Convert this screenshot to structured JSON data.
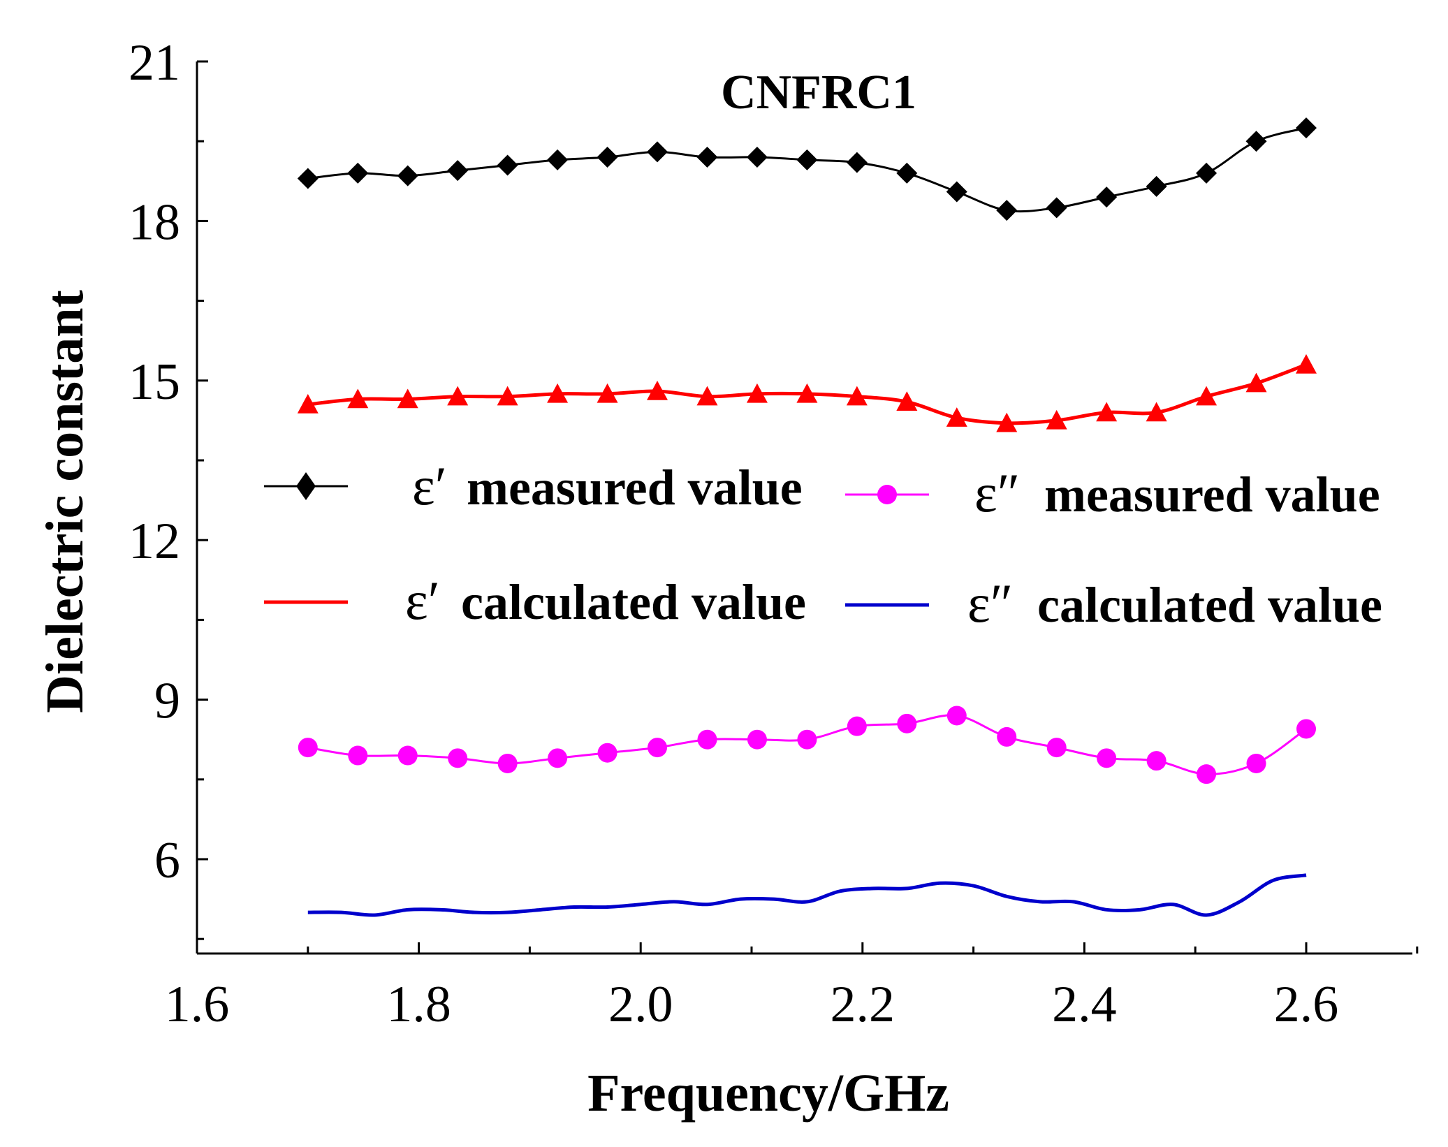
{
  "chart_data": {
    "type": "line",
    "title": "CNFRC1",
    "xlabel": "Frequency/GHz",
    "ylabel": "Dielectric constant",
    "xlim": [
      1.6,
      2.7
    ],
    "ylim": [
      4.0,
      21.0
    ],
    "xticks": [
      1.6,
      1.8,
      2.0,
      2.2,
      2.4,
      2.6
    ],
    "xtick_labels": [
      "1.6",
      "1.8",
      "2.0",
      "2.2",
      "2.4",
      "2.6"
    ],
    "yticks": [
      6,
      9,
      12,
      15,
      18,
      21
    ],
    "ytick_labels": [
      "6",
      "9",
      "12",
      "15",
      "18",
      "21"
    ],
    "legend_position": "center",
    "series": [
      {
        "name": "ε′ measured value",
        "symbol": "ε′",
        "label": "measured value",
        "color": "#000000",
        "marker": "diamond",
        "x": [
          1.7,
          1.745,
          1.79,
          1.835,
          1.88,
          1.925,
          1.97,
          2.015,
          2.06,
          2.105,
          2.15,
          2.195,
          2.24,
          2.285,
          2.33,
          2.375,
          2.42,
          2.465,
          2.51,
          2.555,
          2.6
        ],
        "y": [
          18.8,
          18.9,
          18.85,
          18.95,
          19.05,
          19.15,
          19.2,
          19.3,
          19.2,
          19.2,
          19.15,
          19.1,
          18.9,
          18.55,
          18.2,
          18.25,
          18.45,
          18.65,
          18.9,
          19.5,
          19.75
        ]
      },
      {
        "name": "ε′ calculated value",
        "symbol": "ε′",
        "label": "calculated value",
        "color": "#ff0000",
        "marker": "triangle",
        "x": [
          1.7,
          1.745,
          1.79,
          1.835,
          1.88,
          1.925,
          1.97,
          2.015,
          2.06,
          2.105,
          2.15,
          2.195,
          2.24,
          2.285,
          2.33,
          2.375,
          2.42,
          2.465,
          2.51,
          2.555,
          2.6
        ],
        "y": [
          14.55,
          14.65,
          14.65,
          14.7,
          14.7,
          14.75,
          14.75,
          14.8,
          14.7,
          14.75,
          14.75,
          14.7,
          14.6,
          14.3,
          14.2,
          14.25,
          14.4,
          14.4,
          14.7,
          14.95,
          15.3
        ]
      },
      {
        "name": "ε″ measured value",
        "symbol": "ε″",
        "label": "measured value",
        "color": "#ff00ff",
        "marker": "circle",
        "x": [
          1.7,
          1.745,
          1.79,
          1.835,
          1.88,
          1.925,
          1.97,
          2.015,
          2.06,
          2.105,
          2.15,
          2.195,
          2.24,
          2.285,
          2.33,
          2.375,
          2.42,
          2.465,
          2.51,
          2.555,
          2.6
        ],
        "y": [
          8.1,
          7.95,
          7.95,
          7.9,
          7.8,
          7.9,
          8.0,
          8.1,
          8.25,
          8.25,
          8.25,
          8.5,
          8.55,
          8.7,
          8.3,
          8.1,
          7.9,
          7.85,
          7.6,
          7.8,
          8.45
        ]
      },
      {
        "name": "ε″ calculated value",
        "symbol": "ε″",
        "label": "calculated value",
        "color": "#0000cc",
        "marker": "none",
        "x": [
          1.7,
          1.73,
          1.76,
          1.79,
          1.82,
          1.85,
          1.88,
          1.91,
          1.94,
          1.97,
          2.0,
          2.03,
          2.06,
          2.09,
          2.12,
          2.15,
          2.18,
          2.21,
          2.24,
          2.27,
          2.3,
          2.33,
          2.36,
          2.39,
          2.42,
          2.45,
          2.48,
          2.51,
          2.54,
          2.57,
          2.6
        ],
        "y": [
          5.0,
          5.0,
          4.95,
          5.05,
          5.05,
          5.0,
          5.0,
          5.05,
          5.1,
          5.1,
          5.15,
          5.2,
          5.15,
          5.25,
          5.25,
          5.2,
          5.4,
          5.45,
          5.45,
          5.55,
          5.5,
          5.3,
          5.2,
          5.2,
          5.05,
          5.05,
          5.15,
          4.95,
          5.2,
          5.6,
          5.7
        ]
      }
    ]
  }
}
